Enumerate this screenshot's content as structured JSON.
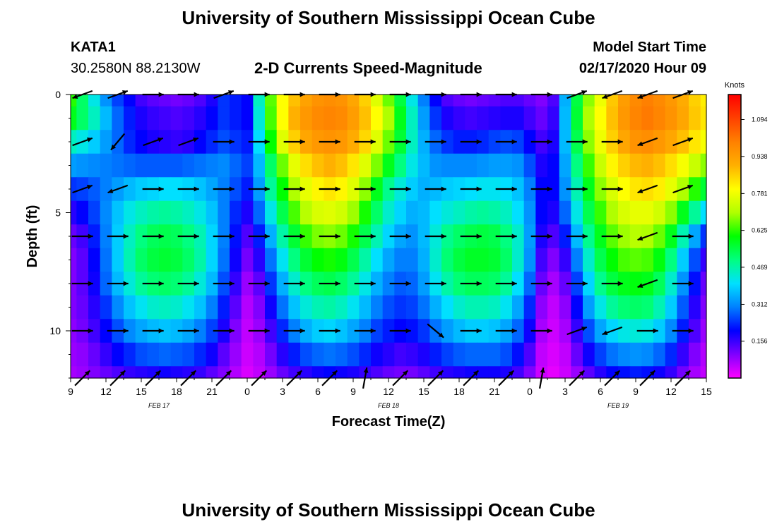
{
  "page": {
    "title_top": "University of Southern Mississippi Ocean Cube",
    "title_bottom": "University of Southern Mississippi Ocean Cube",
    "station_id": "KATA1",
    "station_coords": "30.2580N 88.2130W",
    "chart_heading": "2-D Currents Speed-Magnitude",
    "model_start_label": "Model Start Time",
    "model_start_value": "02/17/2020 Hour 09"
  },
  "colors": {
    "background": "#ffffff",
    "axis": "#000000",
    "arrow": "#000000"
  },
  "chart_data": {
    "type": "heatmap",
    "title": "2-D Currents Speed-Magnitude",
    "xlabel": "Forecast Time(Z)",
    "ylabel": "Depth (ft)",
    "x_tick_labels": [
      "9",
      "12",
      "15",
      "18",
      "21",
      "0",
      "3",
      "6",
      "9",
      "12",
      "15",
      "18",
      "21",
      "0",
      "3",
      "6",
      "9",
      "12",
      "15"
    ],
    "x_hours": [
      0,
      3,
      6,
      9,
      12,
      15,
      18,
      21,
      24,
      27,
      30,
      33,
      36,
      39,
      42,
      45,
      48,
      51,
      54
    ],
    "xlim_hours": [
      0,
      54
    ],
    "date_labels": [
      {
        "text": "FEB 17",
        "hour": 7.5
      },
      {
        "text": "FEB 18",
        "hour": 27
      },
      {
        "text": "FEB 19",
        "hour": 46.5
      }
    ],
    "y_tick_labels": [
      "0",
      "5",
      "10"
    ],
    "y_ticks": [
      0,
      5,
      10
    ],
    "ylim": [
      0,
      12
    ],
    "y_inverted": true,
    "colorbar": {
      "title": "Knots",
      "tick_labels": [
        "0.156",
        "0.312",
        "0.469",
        "0.625",
        "0.781",
        "0.938",
        "1.094"
      ],
      "ticks": [
        0.156,
        0.312,
        0.469,
        0.625,
        0.781,
        0.938,
        1.094
      ],
      "range": [
        0,
        1.2
      ],
      "palette": [
        "#ff00ff",
        "#8000ff",
        "#0000ff",
        "#0080ff",
        "#00e0ff",
        "#00ff80",
        "#00ff00",
        "#b0ff00",
        "#ffff00",
        "#ffb000",
        "#ff8000",
        "#ff4000",
        "#ff0000"
      ]
    },
    "time_hours": [
      0,
      1,
      2,
      3,
      4,
      5,
      6,
      7,
      8,
      9,
      10,
      11,
      12,
      13,
      14,
      15,
      16,
      17,
      18,
      19,
      20,
      21,
      22,
      23,
      24,
      25,
      26,
      27,
      28,
      29,
      30,
      31,
      32,
      33,
      34,
      35,
      36,
      37,
      38,
      39,
      40,
      41,
      42,
      43,
      44,
      45,
      46,
      47,
      48,
      49,
      50,
      51,
      52,
      53,
      54
    ],
    "depth_levels_ft": [
      0,
      1,
      2,
      3,
      4,
      5,
      6,
      7,
      8,
      9,
      10,
      11,
      12
    ],
    "speed_knots": [
      [
        0.62,
        0.52,
        0.42,
        0.32,
        0.25,
        0.2,
        0.15,
        0.13,
        0.12,
        0.11,
        0.12,
        0.14,
        0.18,
        0.24,
        0.22,
        0.2,
        0.45,
        0.65,
        0.8,
        0.88,
        0.93,
        0.96,
        0.97,
        0.96,
        0.92,
        0.86,
        0.76,
        0.66,
        0.55,
        0.42,
        0.3,
        0.2,
        0.14,
        0.12,
        0.11,
        0.12,
        0.13,
        0.14,
        0.14,
        0.12,
        0.1,
        0.14,
        0.35,
        0.55,
        0.68,
        0.78,
        0.87,
        0.94,
        0.98,
        1.0,
        0.98,
        0.95,
        0.91,
        0.86,
        0.82
      ],
      [
        0.58,
        0.52,
        0.45,
        0.36,
        0.28,
        0.22,
        0.18,
        0.16,
        0.15,
        0.14,
        0.15,
        0.17,
        0.2,
        0.24,
        0.22,
        0.2,
        0.43,
        0.64,
        0.8,
        0.9,
        0.95,
        0.98,
        0.99,
        0.98,
        0.94,
        0.88,
        0.8,
        0.7,
        0.58,
        0.45,
        0.33,
        0.24,
        0.18,
        0.16,
        0.15,
        0.16,
        0.17,
        0.18,
        0.18,
        0.15,
        0.12,
        0.16,
        0.36,
        0.56,
        0.7,
        0.8,
        0.88,
        0.95,
        0.99,
        1.01,
        0.99,
        0.96,
        0.92,
        0.87,
        0.83
      ],
      [
        0.45,
        0.42,
        0.38,
        0.33,
        0.28,
        0.23,
        0.2,
        0.18,
        0.17,
        0.16,
        0.17,
        0.2,
        0.23,
        0.26,
        0.24,
        0.22,
        0.4,
        0.6,
        0.76,
        0.86,
        0.92,
        0.95,
        0.96,
        0.95,
        0.91,
        0.85,
        0.76,
        0.66,
        0.56,
        0.45,
        0.35,
        0.28,
        0.24,
        0.22,
        0.22,
        0.23,
        0.25,
        0.26,
        0.25,
        0.2,
        0.15,
        0.18,
        0.36,
        0.54,
        0.68,
        0.78,
        0.86,
        0.92,
        0.96,
        0.97,
        0.95,
        0.92,
        0.88,
        0.83,
        0.79
      ],
      [
        0.33,
        0.32,
        0.31,
        0.3,
        0.29,
        0.28,
        0.27,
        0.27,
        0.27,
        0.27,
        0.28,
        0.29,
        0.3,
        0.31,
        0.28,
        0.25,
        0.36,
        0.52,
        0.66,
        0.77,
        0.84,
        0.88,
        0.9,
        0.88,
        0.83,
        0.76,
        0.67,
        0.58,
        0.5,
        0.42,
        0.36,
        0.32,
        0.31,
        0.31,
        0.31,
        0.32,
        0.33,
        0.33,
        0.32,
        0.26,
        0.18,
        0.2,
        0.34,
        0.5,
        0.63,
        0.73,
        0.81,
        0.86,
        0.89,
        0.9,
        0.88,
        0.84,
        0.79,
        0.73,
        0.68
      ],
      [
        0.24,
        0.25,
        0.27,
        0.3,
        0.33,
        0.36,
        0.38,
        0.39,
        0.4,
        0.4,
        0.39,
        0.37,
        0.34,
        0.3,
        0.26,
        0.22,
        0.33,
        0.48,
        0.6,
        0.7,
        0.77,
        0.81,
        0.83,
        0.81,
        0.76,
        0.68,
        0.58,
        0.49,
        0.43,
        0.38,
        0.35,
        0.36,
        0.38,
        0.39,
        0.4,
        0.41,
        0.41,
        0.4,
        0.37,
        0.3,
        0.2,
        0.2,
        0.32,
        0.46,
        0.58,
        0.68,
        0.75,
        0.8,
        0.83,
        0.84,
        0.82,
        0.77,
        0.7,
        0.62,
        0.56
      ],
      [
        0.17,
        0.2,
        0.25,
        0.31,
        0.37,
        0.42,
        0.45,
        0.47,
        0.48,
        0.47,
        0.45,
        0.42,
        0.37,
        0.3,
        0.23,
        0.18,
        0.28,
        0.42,
        0.54,
        0.64,
        0.71,
        0.75,
        0.76,
        0.74,
        0.69,
        0.61,
        0.52,
        0.44,
        0.39,
        0.35,
        0.36,
        0.4,
        0.43,
        0.45,
        0.47,
        0.48,
        0.47,
        0.45,
        0.4,
        0.32,
        0.2,
        0.18,
        0.28,
        0.42,
        0.54,
        0.63,
        0.7,
        0.75,
        0.77,
        0.77,
        0.74,
        0.68,
        0.58,
        0.48,
        0.4
      ],
      [
        0.12,
        0.15,
        0.22,
        0.3,
        0.38,
        0.45,
        0.5,
        0.53,
        0.54,
        0.53,
        0.5,
        0.46,
        0.39,
        0.3,
        0.21,
        0.14,
        0.22,
        0.35,
        0.47,
        0.56,
        0.63,
        0.67,
        0.68,
        0.66,
        0.61,
        0.54,
        0.46,
        0.39,
        0.34,
        0.32,
        0.36,
        0.43,
        0.49,
        0.52,
        0.54,
        0.55,
        0.54,
        0.5,
        0.44,
        0.33,
        0.18,
        0.14,
        0.22,
        0.36,
        0.49,
        0.58,
        0.65,
        0.69,
        0.71,
        0.7,
        0.66,
        0.58,
        0.46,
        0.34,
        0.24
      ],
      [
        0.1,
        0.13,
        0.2,
        0.29,
        0.38,
        0.46,
        0.52,
        0.55,
        0.56,
        0.55,
        0.52,
        0.47,
        0.39,
        0.29,
        0.19,
        0.11,
        0.17,
        0.29,
        0.41,
        0.5,
        0.56,
        0.6,
        0.61,
        0.59,
        0.54,
        0.47,
        0.4,
        0.34,
        0.3,
        0.3,
        0.35,
        0.44,
        0.51,
        0.55,
        0.57,
        0.57,
        0.56,
        0.52,
        0.44,
        0.32,
        0.15,
        0.1,
        0.16,
        0.3,
        0.44,
        0.54,
        0.6,
        0.64,
        0.65,
        0.64,
        0.59,
        0.5,
        0.38,
        0.26,
        0.16
      ],
      [
        0.1,
        0.13,
        0.19,
        0.28,
        0.36,
        0.43,
        0.48,
        0.51,
        0.52,
        0.51,
        0.48,
        0.43,
        0.36,
        0.26,
        0.16,
        0.08,
        0.13,
        0.24,
        0.35,
        0.44,
        0.5,
        0.53,
        0.54,
        0.52,
        0.48,
        0.42,
        0.35,
        0.3,
        0.27,
        0.28,
        0.33,
        0.41,
        0.47,
        0.51,
        0.53,
        0.53,
        0.52,
        0.48,
        0.4,
        0.28,
        0.12,
        0.07,
        0.12,
        0.25,
        0.39,
        0.49,
        0.55,
        0.58,
        0.59,
        0.58,
        0.53,
        0.44,
        0.32,
        0.21,
        0.12
      ],
      [
        0.1,
        0.12,
        0.17,
        0.24,
        0.31,
        0.37,
        0.41,
        0.44,
        0.45,
        0.44,
        0.41,
        0.37,
        0.3,
        0.22,
        0.13,
        0.06,
        0.1,
        0.19,
        0.29,
        0.37,
        0.43,
        0.46,
        0.47,
        0.45,
        0.41,
        0.36,
        0.3,
        0.26,
        0.24,
        0.25,
        0.29,
        0.35,
        0.4,
        0.44,
        0.46,
        0.46,
        0.45,
        0.41,
        0.34,
        0.23,
        0.09,
        0.05,
        0.09,
        0.2,
        0.33,
        0.42,
        0.48,
        0.51,
        0.52,
        0.51,
        0.46,
        0.38,
        0.27,
        0.17,
        0.1
      ],
      [
        0.09,
        0.11,
        0.15,
        0.2,
        0.26,
        0.31,
        0.34,
        0.36,
        0.37,
        0.36,
        0.34,
        0.3,
        0.25,
        0.18,
        0.1,
        0.05,
        0.08,
        0.15,
        0.23,
        0.3,
        0.35,
        0.38,
        0.39,
        0.37,
        0.34,
        0.3,
        0.25,
        0.22,
        0.2,
        0.21,
        0.24,
        0.29,
        0.33,
        0.36,
        0.38,
        0.38,
        0.37,
        0.34,
        0.28,
        0.19,
        0.07,
        0.04,
        0.07,
        0.16,
        0.26,
        0.34,
        0.39,
        0.42,
        0.43,
        0.42,
        0.38,
        0.31,
        0.22,
        0.14,
        0.08
      ],
      [
        0.08,
        0.09,
        0.12,
        0.16,
        0.2,
        0.23,
        0.26,
        0.27,
        0.28,
        0.27,
        0.26,
        0.23,
        0.19,
        0.13,
        0.08,
        0.04,
        0.06,
        0.11,
        0.17,
        0.22,
        0.26,
        0.28,
        0.29,
        0.28,
        0.26,
        0.23,
        0.19,
        0.17,
        0.15,
        0.16,
        0.18,
        0.22,
        0.25,
        0.27,
        0.28,
        0.28,
        0.28,
        0.26,
        0.21,
        0.14,
        0.05,
        0.03,
        0.05,
        0.12,
        0.19,
        0.25,
        0.29,
        0.31,
        0.32,
        0.31,
        0.28,
        0.23,
        0.16,
        0.1,
        0.06
      ],
      [
        0.07,
        0.08,
        0.1,
        0.12,
        0.14,
        0.16,
        0.17,
        0.18,
        0.19,
        0.18,
        0.17,
        0.16,
        0.13,
        0.1,
        0.06,
        0.03,
        0.05,
        0.08,
        0.12,
        0.15,
        0.17,
        0.19,
        0.2,
        0.19,
        0.18,
        0.16,
        0.14,
        0.12,
        0.11,
        0.11,
        0.13,
        0.15,
        0.17,
        0.18,
        0.19,
        0.19,
        0.19,
        0.18,
        0.15,
        0.1,
        0.04,
        0.02,
        0.04,
        0.08,
        0.13,
        0.17,
        0.2,
        0.21,
        0.22,
        0.21,
        0.19,
        0.16,
        0.11,
        0.07,
        0.05
      ]
    ],
    "vector_times_hours": [
      1,
      4,
      7,
      10,
      13,
      16,
      19,
      22,
      25,
      28,
      31,
      34,
      37,
      40,
      43,
      46,
      49,
      52
    ],
    "vector_depths_ft": [
      0,
      2,
      4,
      6,
      8,
      10,
      12
    ],
    "vector_direction_deg": [
      [
        200,
        20,
        0,
        0,
        20,
        0,
        0,
        0,
        0,
        0,
        0,
        0,
        0,
        0,
        20,
        200,
        200,
        20
      ],
      [
        20,
        230,
        20,
        20,
        0,
        0,
        0,
        0,
        0,
        0,
        0,
        0,
        0,
        0,
        0,
        0,
        200,
        20
      ],
      [
        20,
        200,
        0,
        0,
        0,
        0,
        0,
        0,
        0,
        0,
        0,
        0,
        0,
        0,
        0,
        0,
        200,
        20
      ],
      [
        0,
        0,
        0,
        0,
        0,
        0,
        0,
        0,
        0,
        0,
        0,
        0,
        0,
        0,
        0,
        0,
        200,
        0
      ],
      [
        0,
        0,
        0,
        0,
        0,
        0,
        0,
        0,
        0,
        0,
        0,
        0,
        0,
        0,
        0,
        0,
        200,
        0
      ],
      [
        0,
        0,
        0,
        0,
        0,
        0,
        0,
        0,
        0,
        0,
        320,
        0,
        0,
        0,
        20,
        200,
        0,
        0
      ],
      [
        45,
        45,
        45,
        45,
        45,
        45,
        45,
        45,
        80,
        45,
        45,
        45,
        45,
        80,
        45,
        45,
        45,
        45
      ]
    ]
  }
}
